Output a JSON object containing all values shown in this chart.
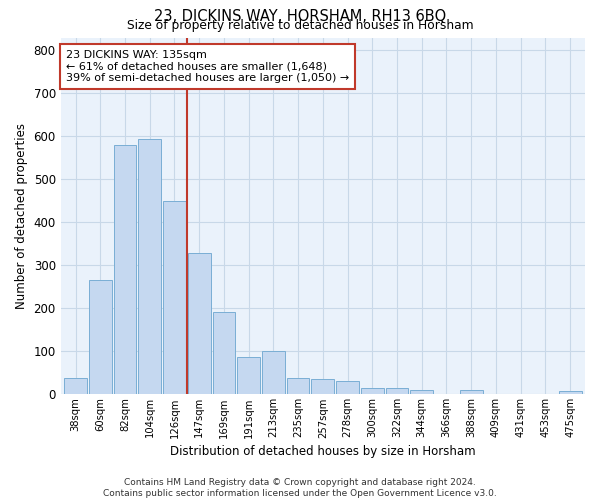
{
  "title": "23, DICKINS WAY, HORSHAM, RH13 6BQ",
  "subtitle": "Size of property relative to detached houses in Horsham",
  "xlabel": "Distribution of detached houses by size in Horsham",
  "ylabel": "Number of detached properties",
  "categories": [
    "38sqm",
    "60sqm",
    "82sqm",
    "104sqm",
    "126sqm",
    "147sqm",
    "169sqm",
    "191sqm",
    "213sqm",
    "235sqm",
    "257sqm",
    "278sqm",
    "300sqm",
    "322sqm",
    "344sqm",
    "366sqm",
    "388sqm",
    "409sqm",
    "431sqm",
    "453sqm",
    "475sqm"
  ],
  "values": [
    38,
    265,
    580,
    595,
    450,
    328,
    192,
    86,
    100,
    38,
    36,
    32,
    15,
    14,
    10,
    0,
    10,
    0,
    0,
    0,
    8
  ],
  "bar_color": "#c5d8f0",
  "bar_edge_color": "#7aaed4",
  "grid_color": "#c8d8e8",
  "background_color": "#eaf2fb",
  "vline_x": 4.5,
  "vline_color": "#c0392b",
  "annotation_line1": "23 DICKINS WAY: 135sqm",
  "annotation_line2": "← 61% of detached houses are smaller (1,648)",
  "annotation_line3": "39% of semi-detached houses are larger (1,050) →",
  "annotation_box_color": "#ffffff",
  "annotation_box_edge": "#c0392b",
  "footer": "Contains HM Land Registry data © Crown copyright and database right 2024.\nContains public sector information licensed under the Open Government Licence v3.0.",
  "ylim": [
    0,
    830
  ],
  "yticks": [
    0,
    100,
    200,
    300,
    400,
    500,
    600,
    700,
    800
  ]
}
